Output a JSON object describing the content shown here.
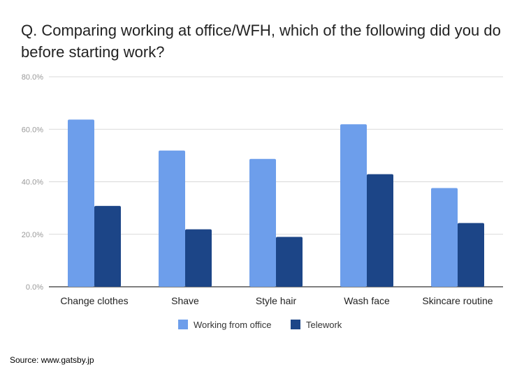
{
  "chart_data": {
    "type": "bar",
    "title": "Q. Comparing working at office/WFH, which of the following did you do before starting work?",
    "categories": [
      "Change clothes",
      "Shave",
      "Style hair",
      "Wash face",
      "Skincare routine"
    ],
    "series": [
      {
        "name": "Working from office",
        "color": "#6d9eeb",
        "values": [
          63.7,
          51.9,
          48.7,
          61.9,
          37.6
        ]
      },
      {
        "name": "Telework",
        "color": "#1c4587",
        "values": [
          30.8,
          21.9,
          19.0,
          42.9,
          24.3
        ]
      }
    ],
    "yticks": [
      "0.0%",
      "20.0%",
      "40.0%",
      "60.0%",
      "80.0%"
    ],
    "ylim": [
      0,
      80
    ],
    "grid": true,
    "legend_position": "bottom"
  },
  "source": "Source: www.gatsby.jp"
}
